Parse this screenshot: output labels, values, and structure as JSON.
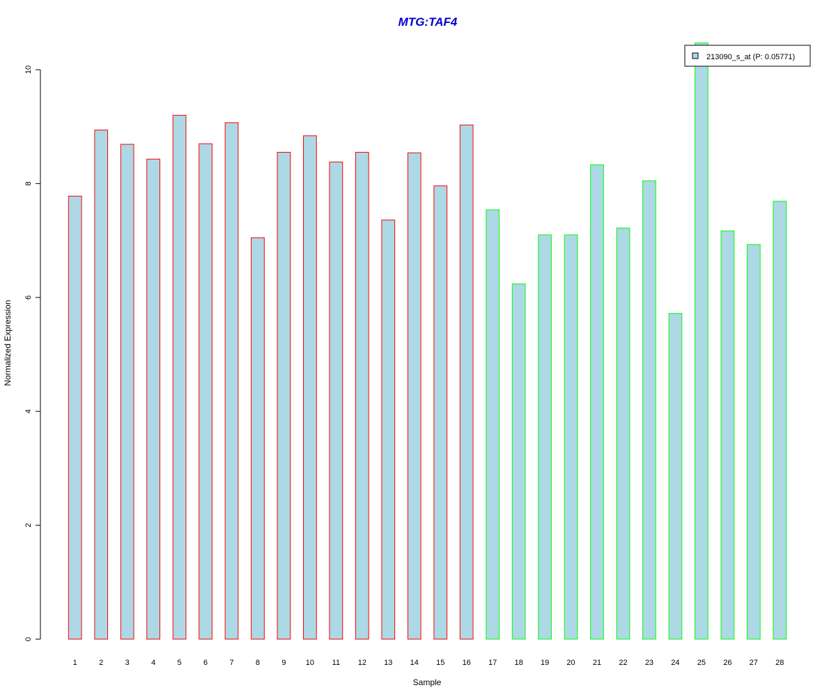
{
  "chart_data": {
    "type": "bar",
    "title": "MTG:TAF4",
    "xlabel": "Sample",
    "ylabel": "Normalized Expression",
    "categories": [
      "1",
      "2",
      "3",
      "4",
      "5",
      "6",
      "7",
      "8",
      "9",
      "10",
      "11",
      "12",
      "13",
      "14",
      "15",
      "16",
      "17",
      "18",
      "19",
      "20",
      "21",
      "22",
      "23",
      "24",
      "25",
      "26",
      "27",
      "28"
    ],
    "series": [
      {
        "name": "213090_s_at (P: 0.05771)",
        "values": [
          7.78,
          8.94,
          8.69,
          8.43,
          9.2,
          8.7,
          9.07,
          7.05,
          8.55,
          8.84,
          8.38,
          8.55,
          7.36,
          8.54,
          7.96,
          9.03,
          7.54,
          6.24,
          7.1,
          7.1,
          8.33,
          7.22,
          8.05,
          5.72,
          10.47,
          7.17,
          6.93,
          7.69
        ]
      }
    ],
    "groups": [
      {
        "from": 1,
        "to": 16,
        "color": "#ff0000"
      },
      {
        "from": 17,
        "to": 28,
        "color": "#00ff00"
      }
    ],
    "ylim": [
      0,
      10
    ],
    "yticks": [
      0,
      2,
      4,
      6,
      8,
      10
    ],
    "bar_fill": "#add8e6",
    "title_color": "#0000cd",
    "grid": false,
    "legend_position": "top-right"
  }
}
